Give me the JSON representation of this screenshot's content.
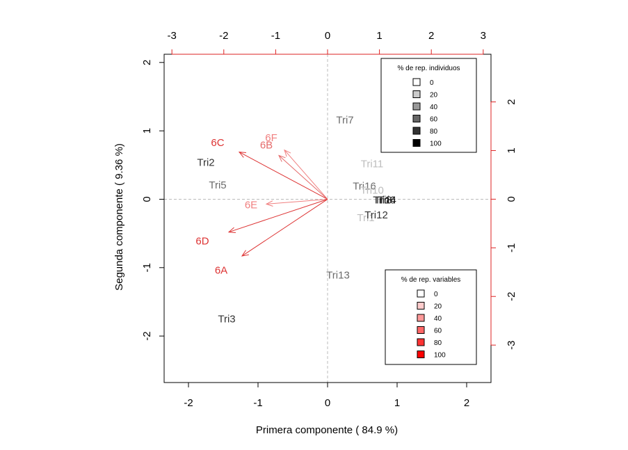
{
  "chart_data": {
    "type": "scatter",
    "subtype": "biplot",
    "xlabel": "Primera componente ( 84.9 %)",
    "ylabel": "Segunda componente ( 9.36 %)",
    "xlim": [
      -2.35,
      2.35
    ],
    "ylim": [
      -2.68,
      2.12
    ],
    "x_ticks": [
      -2,
      -1,
      0,
      1,
      2
    ],
    "y_ticks": [
      -2,
      -1,
      0,
      1,
      2
    ],
    "top_axis": {
      "ticks": [
        -3,
        -2,
        -1,
        0,
        1,
        2,
        3
      ],
      "lim": [
        -3.15,
        3.15
      ],
      "color": "#dd2222"
    },
    "right_axis": {
      "ticks": [
        -3,
        -2,
        -1,
        0,
        1,
        2
      ],
      "lim": [
        -3.77,
        2.98
      ],
      "color": "#dd2222"
    },
    "reference_lines": {
      "x": 0,
      "y": 0,
      "style": "dashed",
      "color": "#bbbbbb"
    },
    "individuals": [
      {
        "label": "Tri7",
        "x": 0.25,
        "y": 1.15,
        "color": "#6b6b6b"
      },
      {
        "label": "Tri2",
        "x": -1.75,
        "y": 0.53,
        "color": "#333333"
      },
      {
        "label": "Tri5",
        "x": -1.58,
        "y": 0.2,
        "color": "#6b6b6b"
      },
      {
        "label": "Tri11",
        "x": 0.64,
        "y": 0.51,
        "color": "#bdbdbd"
      },
      {
        "label": "Tri16",
        "x": 0.53,
        "y": 0.18,
        "color": "#6b6b6b"
      },
      {
        "label": "Tri10",
        "x": 0.64,
        "y": 0.12,
        "color": "#bdbdbd"
      },
      {
        "label": "Tri14",
        "x": 0.82,
        "y": -0.02,
        "color": "#1a1a1a"
      },
      {
        "label": "Tri8",
        "x": 0.8,
        "y": -0.02,
        "color": "#333333"
      },
      {
        "label": "Tri6",
        "x": 0.85,
        "y": -0.02,
        "color": "#1a1a1a"
      },
      {
        "label": "Tri1",
        "x": 0.55,
        "y": -0.28,
        "color": "#bdbdbd"
      },
      {
        "label": "Tri12",
        "x": 0.7,
        "y": -0.24,
        "color": "#333333"
      },
      {
        "label": "Tri13",
        "x": 0.15,
        "y": -1.12,
        "color": "#6b6b6b"
      },
      {
        "label": "Tri3",
        "x": -1.45,
        "y": -1.76,
        "color": "#333333"
      }
    ],
    "variables": [
      {
        "label": "6C",
        "x": -1.27,
        "y": 0.69,
        "label_x": -1.58,
        "label_y": 0.82,
        "color": "#dd3333"
      },
      {
        "label": "6F",
        "x": -0.62,
        "y": 0.72,
        "label_x": -0.81,
        "label_y": 0.89,
        "color": "#f07f7f"
      },
      {
        "label": "6B",
        "x": -0.7,
        "y": 0.64,
        "label_x": -0.88,
        "label_y": 0.78,
        "color": "#e56a6a"
      },
      {
        "label": "6E",
        "x": -0.88,
        "y": -0.07,
        "label_x": -1.1,
        "label_y": -0.09,
        "color": "#f07f7f"
      },
      {
        "label": "6D",
        "x": -1.42,
        "y": -0.48,
        "label_x": -1.8,
        "label_y": -0.62,
        "color": "#dd3333"
      },
      {
        "label": "6A",
        "x": -1.23,
        "y": -0.83,
        "label_x": -1.53,
        "label_y": -1.05,
        "color": "#dd3333"
      }
    ],
    "legends": [
      {
        "title": "% de rep. individuos",
        "placement": "top-right",
        "items": [
          {
            "label": "0",
            "color": "#ffffff"
          },
          {
            "label": "20",
            "color": "#cccccc"
          },
          {
            "label": "40",
            "color": "#999999"
          },
          {
            "label": "60",
            "color": "#666666"
          },
          {
            "label": "80",
            "color": "#333333"
          },
          {
            "label": "100",
            "color": "#000000"
          }
        ]
      },
      {
        "title": "% de rep. variables",
        "placement": "bottom-right",
        "items": [
          {
            "label": "0",
            "color": "#ffffff"
          },
          {
            "label": "20",
            "color": "#ffcccc"
          },
          {
            "label": "40",
            "color": "#ff9999"
          },
          {
            "label": "60",
            "color": "#ff6666"
          },
          {
            "label": "80",
            "color": "#ff3333"
          },
          {
            "label": "100",
            "color": "#ff0000"
          }
        ]
      }
    ]
  }
}
